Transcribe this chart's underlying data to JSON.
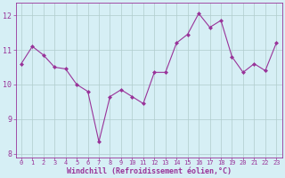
{
  "x": [
    0,
    1,
    2,
    3,
    4,
    5,
    6,
    7,
    8,
    9,
    10,
    11,
    12,
    13,
    14,
    15,
    16,
    17,
    18,
    19,
    20,
    21,
    22,
    23
  ],
  "y": [
    10.6,
    11.1,
    10.85,
    10.5,
    10.45,
    10.0,
    9.8,
    8.35,
    9.65,
    9.85,
    9.65,
    9.45,
    10.35,
    10.35,
    11.2,
    11.45,
    12.05,
    11.65,
    11.85,
    10.8,
    10.35,
    10.6,
    10.4,
    11.2
  ],
  "line_color": "#993399",
  "marker": "D",
  "marker_size": 2,
  "background_color": "#d6eff5",
  "grid_color": "#b0cccc",
  "xlabel": "Windchill (Refroidissement éolien,°C)",
  "xlabel_color": "#993399",
  "tick_color": "#993399",
  "ylim": [
    7.9,
    12.35
  ],
  "yticks": [
    8,
    9,
    10,
    11,
    12
  ],
  "xlim": [
    -0.5,
    23.5
  ],
  "xticks": [
    0,
    1,
    2,
    3,
    4,
    5,
    6,
    7,
    8,
    9,
    10,
    11,
    12,
    13,
    14,
    15,
    16,
    17,
    18,
    19,
    20,
    21,
    22,
    23
  ],
  "tick_fontsize": 5,
  "xlabel_fontsize": 6,
  "linewidth": 0.8
}
